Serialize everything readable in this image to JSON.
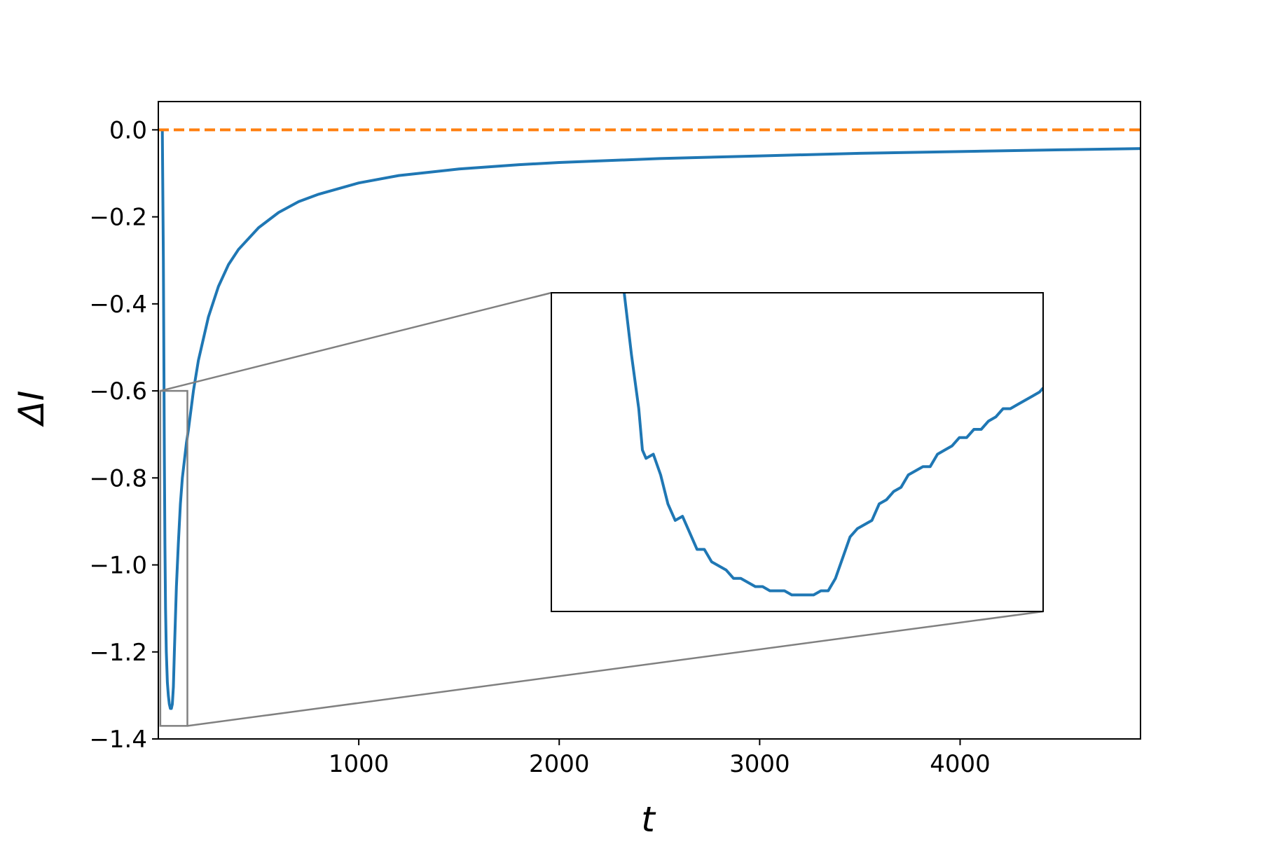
{
  "chart_data": {
    "type": "line",
    "title": "",
    "xlabel": "t",
    "ylabel": "ΔI",
    "xlim": [
      0,
      4900
    ],
    "ylim": [
      -1.4,
      0.065
    ],
    "xticks": [
      1000,
      2000,
      3000,
      4000
    ],
    "xtick_labels": [
      "1000",
      "2000",
      "3000",
      "4000"
    ],
    "yticks": [
      0.0,
      -0.2,
      -0.4,
      -0.6,
      -0.8,
      -1.0,
      -1.2,
      -1.4
    ],
    "ytick_labels": [
      "0.0",
      "−0.2",
      "−0.4",
      "−0.6",
      "−0.8",
      "−1.0",
      "−1.2",
      "−1.4"
    ],
    "grid": false,
    "legend": "none",
    "series": [
      {
        "color": "#1f77b4",
        "style": "solid",
        "x": [
          20,
          25,
          28,
          30,
          33,
          36,
          40,
          45,
          50,
          55,
          60,
          65,
          70,
          75,
          80,
          90,
          100,
          110,
          120,
          130,
          140,
          150,
          175,
          200,
          250,
          300,
          350,
          400,
          500,
          600,
          700,
          800,
          1000,
          1200,
          1500,
          1800,
          2000,
          2500,
          3000,
          3500,
          4000,
          4500,
          4900
        ],
        "y": [
          0.0,
          -0.3,
          -0.55,
          -0.75,
          -0.95,
          -1.1,
          -1.2,
          -1.27,
          -1.3,
          -1.32,
          -1.33,
          -1.33,
          -1.32,
          -1.28,
          -1.2,
          -1.05,
          -0.95,
          -0.86,
          -0.8,
          -0.76,
          -0.72,
          -0.69,
          -0.6,
          -0.53,
          -0.43,
          -0.36,
          -0.31,
          -0.275,
          -0.225,
          -0.19,
          -0.165,
          -0.148,
          -0.122,
          -0.105,
          -0.09,
          -0.08,
          -0.075,
          -0.066,
          -0.06,
          -0.054,
          -0.05,
          -0.046,
          -0.043
        ]
      },
      {
        "color": "#ff7f0e",
        "style": "dashed",
        "x": [
          0,
          4900
        ],
        "y": [
          0.0,
          0.0
        ]
      }
    ],
    "inset": {
      "type": "line",
      "region_xlim": [
        10,
        145
      ],
      "region_ylim": [
        -1.37,
        -0.6
      ],
      "show_ticks": false,
      "color": "#1f77b4",
      "x": [
        30,
        32,
        34,
        35,
        36,
        38,
        40,
        42,
        44,
        46,
        48,
        50,
        52,
        54,
        56,
        58,
        60,
        62,
        64,
        66,
        68,
        70,
        72,
        74,
        76,
        78,
        80,
        82,
        84,
        86,
        88,
        90,
        92,
        94,
        96,
        98,
        100,
        102,
        104,
        106,
        108,
        110,
        112,
        114,
        116,
        118,
        120,
        122,
        124,
        126,
        128,
        130,
        132,
        134,
        136,
        138,
        140,
        142,
        144,
        145
      ],
      "y": [
        -0.6,
        -0.75,
        -0.88,
        -0.98,
        -1.0,
        -0.99,
        -1.04,
        -1.11,
        -1.15,
        -1.14,
        -1.18,
        -1.22,
        -1.22,
        -1.25,
        -1.26,
        -1.27,
        -1.29,
        -1.29,
        -1.3,
        -1.31,
        -1.31,
        -1.32,
        -1.32,
        -1.32,
        -1.33,
        -1.33,
        -1.33,
        -1.33,
        -1.32,
        -1.32,
        -1.29,
        -1.24,
        -1.19,
        -1.17,
        -1.16,
        -1.15,
        -1.11,
        -1.1,
        -1.08,
        -1.07,
        -1.04,
        -1.03,
        -1.02,
        -1.02,
        -0.99,
        -0.98,
        -0.97,
        -0.95,
        -0.95,
        -0.93,
        -0.93,
        -0.91,
        -0.9,
        -0.88,
        -0.88,
        -0.87,
        -0.86,
        -0.85,
        -0.84,
        -0.83
      ]
    }
  }
}
